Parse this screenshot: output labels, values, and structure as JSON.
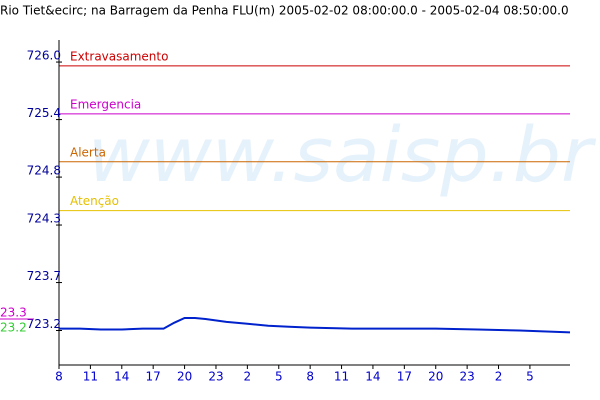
{
  "chart_data": {
    "type": "line",
    "title": "Rio Tiet&ecirc; na Barragem da Penha FLU(m) 2005-02-02 08:00:00.0 - 2005-02-04 08:50:00.0",
    "watermark": "www.saisp.br",
    "xlim": [
      0,
      48.83
    ],
    "xticks": [
      {
        "value": 0,
        "label": "8"
      },
      {
        "value": 3,
        "label": "11"
      },
      {
        "value": 6,
        "label": "14"
      },
      {
        "value": 9,
        "label": "17"
      },
      {
        "value": 12,
        "label": "20"
      },
      {
        "value": 15,
        "label": "23"
      },
      {
        "value": 18,
        "label": "2"
      },
      {
        "value": 21,
        "label": "5"
      },
      {
        "value": 24,
        "label": "8"
      },
      {
        "value": 27,
        "label": "11"
      },
      {
        "value": 30,
        "label": "14"
      },
      {
        "value": 33,
        "label": "17"
      },
      {
        "value": 36,
        "label": "20"
      },
      {
        "value": 39,
        "label": "23"
      },
      {
        "value": 42,
        "label": "2"
      },
      {
        "value": 45,
        "label": "5"
      }
    ],
    "ylim": [
      722.84,
      726.23
    ],
    "yticks": [
      {
        "value": 726,
        "label": "726.0"
      },
      725.4,
      724.8,
      724.3,
      723.7,
      723.2
    ],
    "side_labels": [
      {
        "label": "23.3",
        "color": "#cc00cc"
      },
      {
        "label": "23.2",
        "color": "#33cc33"
      }
    ],
    "thresholds": [
      {
        "name": "Extravasamento",
        "value": 725.96,
        "color": "#cc0000"
      },
      {
        "name": "Emergencia",
        "value": 725.46,
        "color": "#cc00cc"
      },
      {
        "name": "Alerta",
        "value": 724.96,
        "color": "#cc6600"
      },
      {
        "name": "Atenção",
        "value": 724.45,
        "color": "#e6c000"
      }
    ],
    "series": [
      {
        "color": "#0022cc",
        "x": [
          0,
          2,
          4,
          6,
          8,
          10,
          11,
          12,
          13,
          14,
          16,
          18,
          20,
          22,
          24,
          28,
          32,
          36,
          40,
          44,
          48.83
        ],
        "values": [
          723.22,
          723.22,
          723.21,
          723.21,
          723.22,
          723.22,
          723.28,
          723.33,
          723.33,
          723.32,
          723.29,
          723.27,
          723.25,
          723.24,
          723.23,
          723.22,
          723.22,
          723.22,
          723.21,
          723.2,
          723.18
        ]
      }
    ]
  }
}
